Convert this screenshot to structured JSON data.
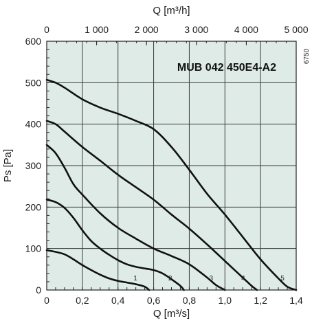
{
  "chart_data": {
    "type": "line",
    "title": "MUB 042 450E4-A2",
    "code": "6750",
    "xlabel": "Q [m³/s]",
    "x2label": "Q [m³/h]",
    "ylabel": "Ps [Pa]",
    "xlim": [
      0,
      1.4
    ],
    "ylim": [
      0,
      600
    ],
    "x2lim": [
      0,
      5000
    ],
    "x_ticks": [
      "0",
      "0,2",
      "0,4",
      "0,6",
      "0,8",
      "1,0",
      "1,2",
      "1,4"
    ],
    "x2_ticks": [
      "0",
      "1 000",
      "2 000",
      "3 000",
      "4 000",
      "5 000"
    ],
    "y_ticks": [
      "0",
      "100",
      "200",
      "300",
      "400",
      "500",
      "600"
    ],
    "grid": true,
    "background": "#deebe6",
    "line_color": "#111111",
    "series": [
      {
        "name": "1",
        "x": [
          0,
          0.05,
          0.1,
          0.15,
          0.2,
          0.25,
          0.3,
          0.35,
          0.4,
          0.45,
          0.5,
          0.55,
          0.575
        ],
        "y": [
          96,
          92,
          86,
          74,
          60,
          48,
          37,
          28,
          22,
          18,
          14,
          8,
          0
        ]
      },
      {
        "name": "2",
        "x": [
          0,
          0.05,
          0.1,
          0.15,
          0.2,
          0.25,
          0.3,
          0.35,
          0.4,
          0.45,
          0.5,
          0.55,
          0.6,
          0.65,
          0.7,
          0.75,
          0.77
        ],
        "y": [
          218,
          212,
          198,
          174,
          144,
          118,
          100,
          85,
          72,
          62,
          56,
          52,
          48,
          40,
          26,
          10,
          0
        ]
      },
      {
        "name": "3",
        "x": [
          0,
          0.05,
          0.1,
          0.15,
          0.2,
          0.3,
          0.4,
          0.5,
          0.6,
          0.7,
          0.8,
          0.9,
          0.95,
          1.0
        ],
        "y": [
          350,
          330,
          295,
          255,
          230,
          185,
          150,
          124,
          100,
          82,
          62,
          30,
          12,
          0
        ]
      },
      {
        "name": "4",
        "x": [
          0,
          0.05,
          0.1,
          0.2,
          0.3,
          0.4,
          0.5,
          0.6,
          0.7,
          0.8,
          0.9,
          1.0,
          1.1,
          1.15,
          1.18
        ],
        "y": [
          408,
          400,
          382,
          345,
          312,
          278,
          248,
          218,
          182,
          148,
          110,
          70,
          30,
          10,
          0
        ]
      },
      {
        "name": "5",
        "x": [
          0,
          0.05,
          0.1,
          0.2,
          0.3,
          0.4,
          0.5,
          0.6,
          0.7,
          0.8,
          0.9,
          1.0,
          1.1,
          1.2,
          1.3,
          1.35,
          1.4
        ],
        "y": [
          507,
          500,
          488,
          460,
          440,
          425,
          408,
          388,
          345,
          290,
          232,
          182,
          128,
          74,
          28,
          8,
          0
        ]
      }
    ]
  }
}
